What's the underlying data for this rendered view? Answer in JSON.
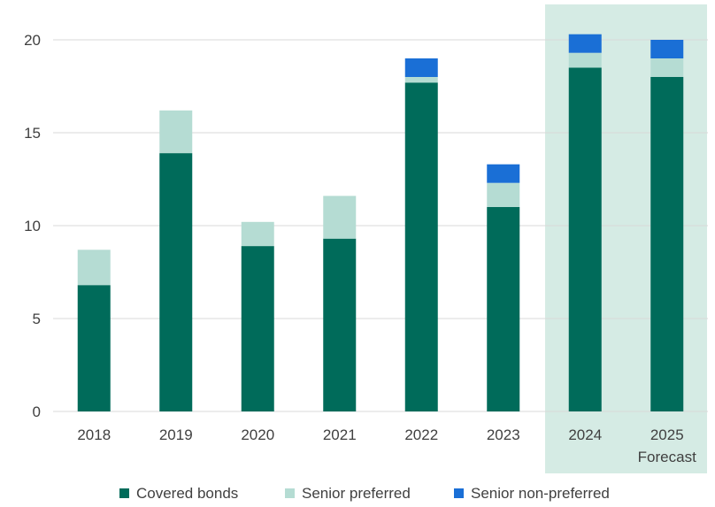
{
  "chart_data": {
    "type": "bar",
    "stacked": true,
    "categories": [
      "2018",
      "2019",
      "2020",
      "2021",
      "2022",
      "2023",
      "2024",
      "2025"
    ],
    "category_sublabels": [
      "",
      "",
      "",
      "",
      "",
      "",
      "",
      "Forecast"
    ],
    "highlighted_categories": [
      "2024",
      "2025"
    ],
    "series": [
      {
        "name": "Covered bonds",
        "color": "#006b5a",
        "values": [
          6.8,
          13.9,
          8.9,
          9.3,
          17.7,
          11.0,
          18.5,
          18.0
        ]
      },
      {
        "name": "Senior preferred",
        "color": "#b5dcd3",
        "values": [
          1.9,
          2.3,
          1.3,
          2.3,
          0.3,
          1.3,
          0.8,
          1.0
        ]
      },
      {
        "name": "Senior non-preferred",
        "color": "#1a6fd6",
        "values": [
          0,
          0,
          0,
          0,
          1.0,
          1.0,
          1.0,
          1.0
        ]
      }
    ],
    "y_ticks": [
      0,
      5,
      10,
      15,
      20
    ],
    "ylim": [
      0,
      22
    ],
    "grid": true,
    "legend_position": "bottom",
    "colors": {
      "highlight_band": "#d5ebe4",
      "grid": "#d9d9d9",
      "text": "#404040"
    }
  }
}
